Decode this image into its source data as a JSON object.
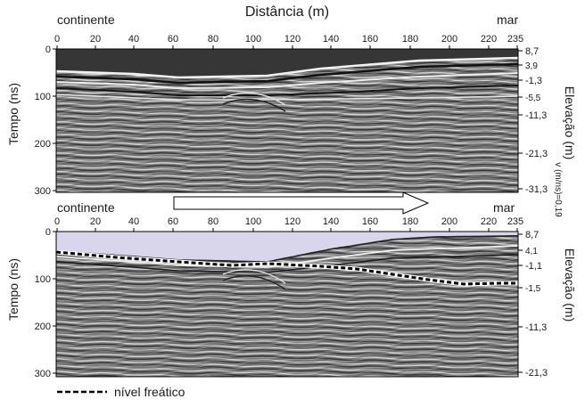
{
  "figure": {
    "top_title": "Distância (m)",
    "left_label": "continente",
    "right_label": "mar",
    "x_ticks": [
      "0",
      "20",
      "40",
      "60",
      "80",
      "100",
      "120",
      "140",
      "160",
      "180",
      "200",
      "220",
      "235"
    ],
    "time_label": "Tempo (ns)",
    "elev_label": "Elevação (m)",
    "velocity_label": "v (m/ns)=0,19",
    "colors": {
      "sky": "#d9d6ec",
      "radar_mid": "#777777",
      "water_line": "#000000"
    }
  },
  "upper_panel": {
    "t_ticks": [
      "0",
      "100",
      "200",
      "300"
    ],
    "elev_ticks": [
      "8,7",
      "3,9",
      "-1,3",
      "-5,5",
      "-11,3",
      "-21,3",
      "-31,3"
    ]
  },
  "lower_panel": {
    "t_ticks": [
      "0",
      "100",
      "200",
      "300"
    ],
    "elev_ticks": [
      "8,7",
      "4,1",
      "-1,1",
      "-1,5",
      "-11,3",
      "-21,3"
    ]
  },
  "legend": {
    "label": "nível freático"
  }
}
